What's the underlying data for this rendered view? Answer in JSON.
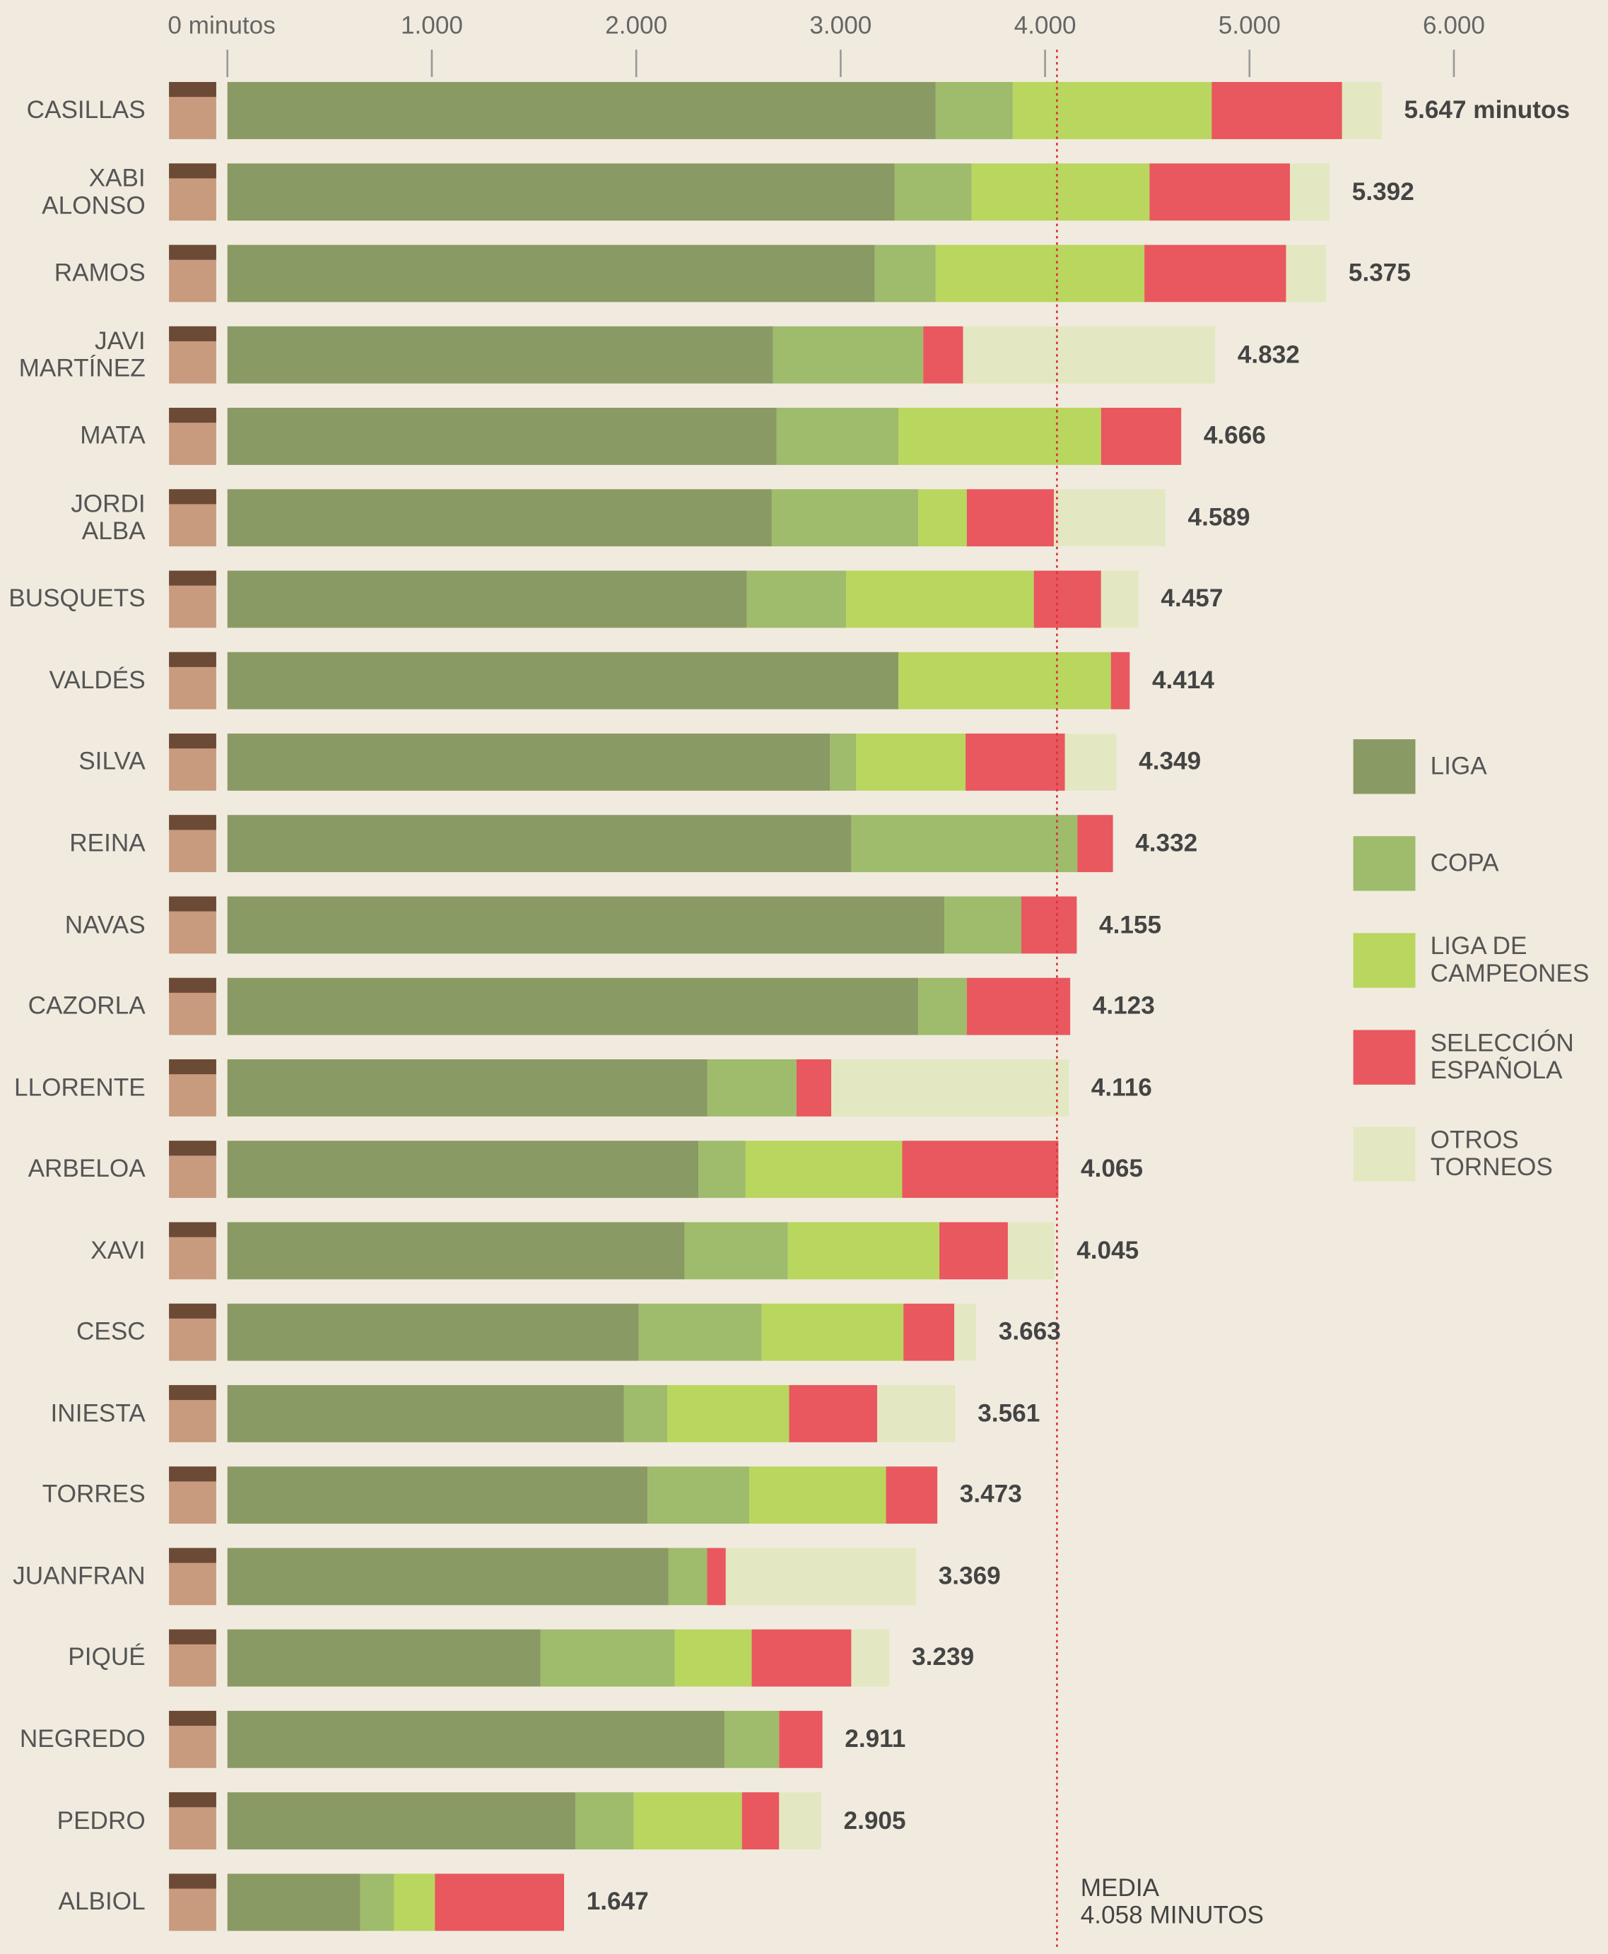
{
  "chart_data": {
    "type": "stacked-bar-horizontal",
    "categories": [
      "CASILLAS",
      "XABI\nALONSO",
      "RAMOS",
      "JAVI\nMARTÍNEZ",
      "MATA",
      "JORDI\nALBA",
      "BUSQUETS",
      "VALDÉS",
      "SILVA",
      "REINA",
      "NAVAS",
      "CAZORLA",
      "LLORENTE",
      "ARBELOA",
      "XAVI",
      "CESC",
      "INIESTA",
      "TORRES",
      "JUANFRAN",
      "PIQUÉ",
      "NEGREDO",
      "PEDRO",
      "ALBIOL"
    ],
    "series": [
      {
        "name": "LIGA",
        "color": "#8a9a64",
        "values": [
          3465,
          3264,
          3167,
          2669,
          2687,
          2663,
          2541,
          3283,
          2948,
          3052,
          3508,
          3380,
          2347,
          2304,
          2237,
          2012,
          1939,
          2055,
          2158,
          1532,
          2432,
          1702,
          650
        ]
      },
      {
        "name": "COPA",
        "color": "#9fbb6c",
        "values": [
          377,
          377,
          298,
          735,
          596,
          717,
          486,
          0,
          128,
          1106,
          376,
          237,
          437,
          231,
          505,
          602,
          213,
          498,
          189,
          656,
          267,
          286,
          165
        ]
      },
      {
        "name": "LIGA DE\nCAMPEONES",
        "color": "#b9d65e",
        "values": [
          973,
          870,
          1021,
          0,
          991,
          237,
          918,
          1039,
          535,
          0,
          0,
          0,
          0,
          766,
          741,
          693,
          596,
          669,
          0,
          377,
          0,
          529,
          200
        ]
      },
      {
        "name": "SELECCIÓN\nESPAÑOLA",
        "color": "#e9575f",
        "values": [
          638,
          687,
          693,
          195,
          392,
          426,
          329,
          92,
          486,
          174,
          271,
          506,
          170,
          764,
          335,
          249,
          431,
          251,
          91,
          487,
          212,
          182,
          632
        ]
      },
      {
        "name": "OTROS\nTORNEOS",
        "color": "#e3e8c2",
        "values": [
          194,
          194,
          196,
          1233,
          0,
          546,
          183,
          0,
          252,
          0,
          0,
          0,
          1162,
          0,
          227,
          107,
          382,
          0,
          931,
          187,
          0,
          206,
          0
        ]
      }
    ],
    "totals": {
      "values": [
        5647,
        5392,
        5375,
        4832,
        4666,
        4589,
        4457,
        4414,
        4349,
        4332,
        4155,
        4123,
        4116,
        4065,
        4045,
        3663,
        3561,
        3473,
        3369,
        3239,
        2911,
        2905,
        1647
      ],
      "value_labels": [
        "5.647 minutos",
        "5.392",
        "5.375",
        "4.832",
        "4.666",
        "4.589",
        "4.457",
        "4.414",
        "4.349",
        "4.332",
        "4.155",
        "4.123",
        "4.116",
        "4.065",
        "4.045",
        "3.663",
        "3.561",
        "3.473",
        "3.369",
        "3.239",
        "2.911",
        "2.905",
        "1.647"
      ]
    },
    "xlim": [
      0,
      6000
    ],
    "xticks": [
      {
        "value": 0,
        "label": "0 minutos"
      },
      {
        "value": 1000,
        "label": "1.000"
      },
      {
        "value": 2000,
        "label": "2.000"
      },
      {
        "value": 3000,
        "label": "3.000"
      },
      {
        "value": 4000,
        "label": "4.000"
      },
      {
        "value": 5000,
        "label": "5.000"
      },
      {
        "value": 6000,
        "label": "6.000"
      }
    ],
    "reference_line": {
      "value": 4058,
      "label": "MEDIA\n4.058 MINUTOS",
      "color": "#d9343c"
    }
  }
}
